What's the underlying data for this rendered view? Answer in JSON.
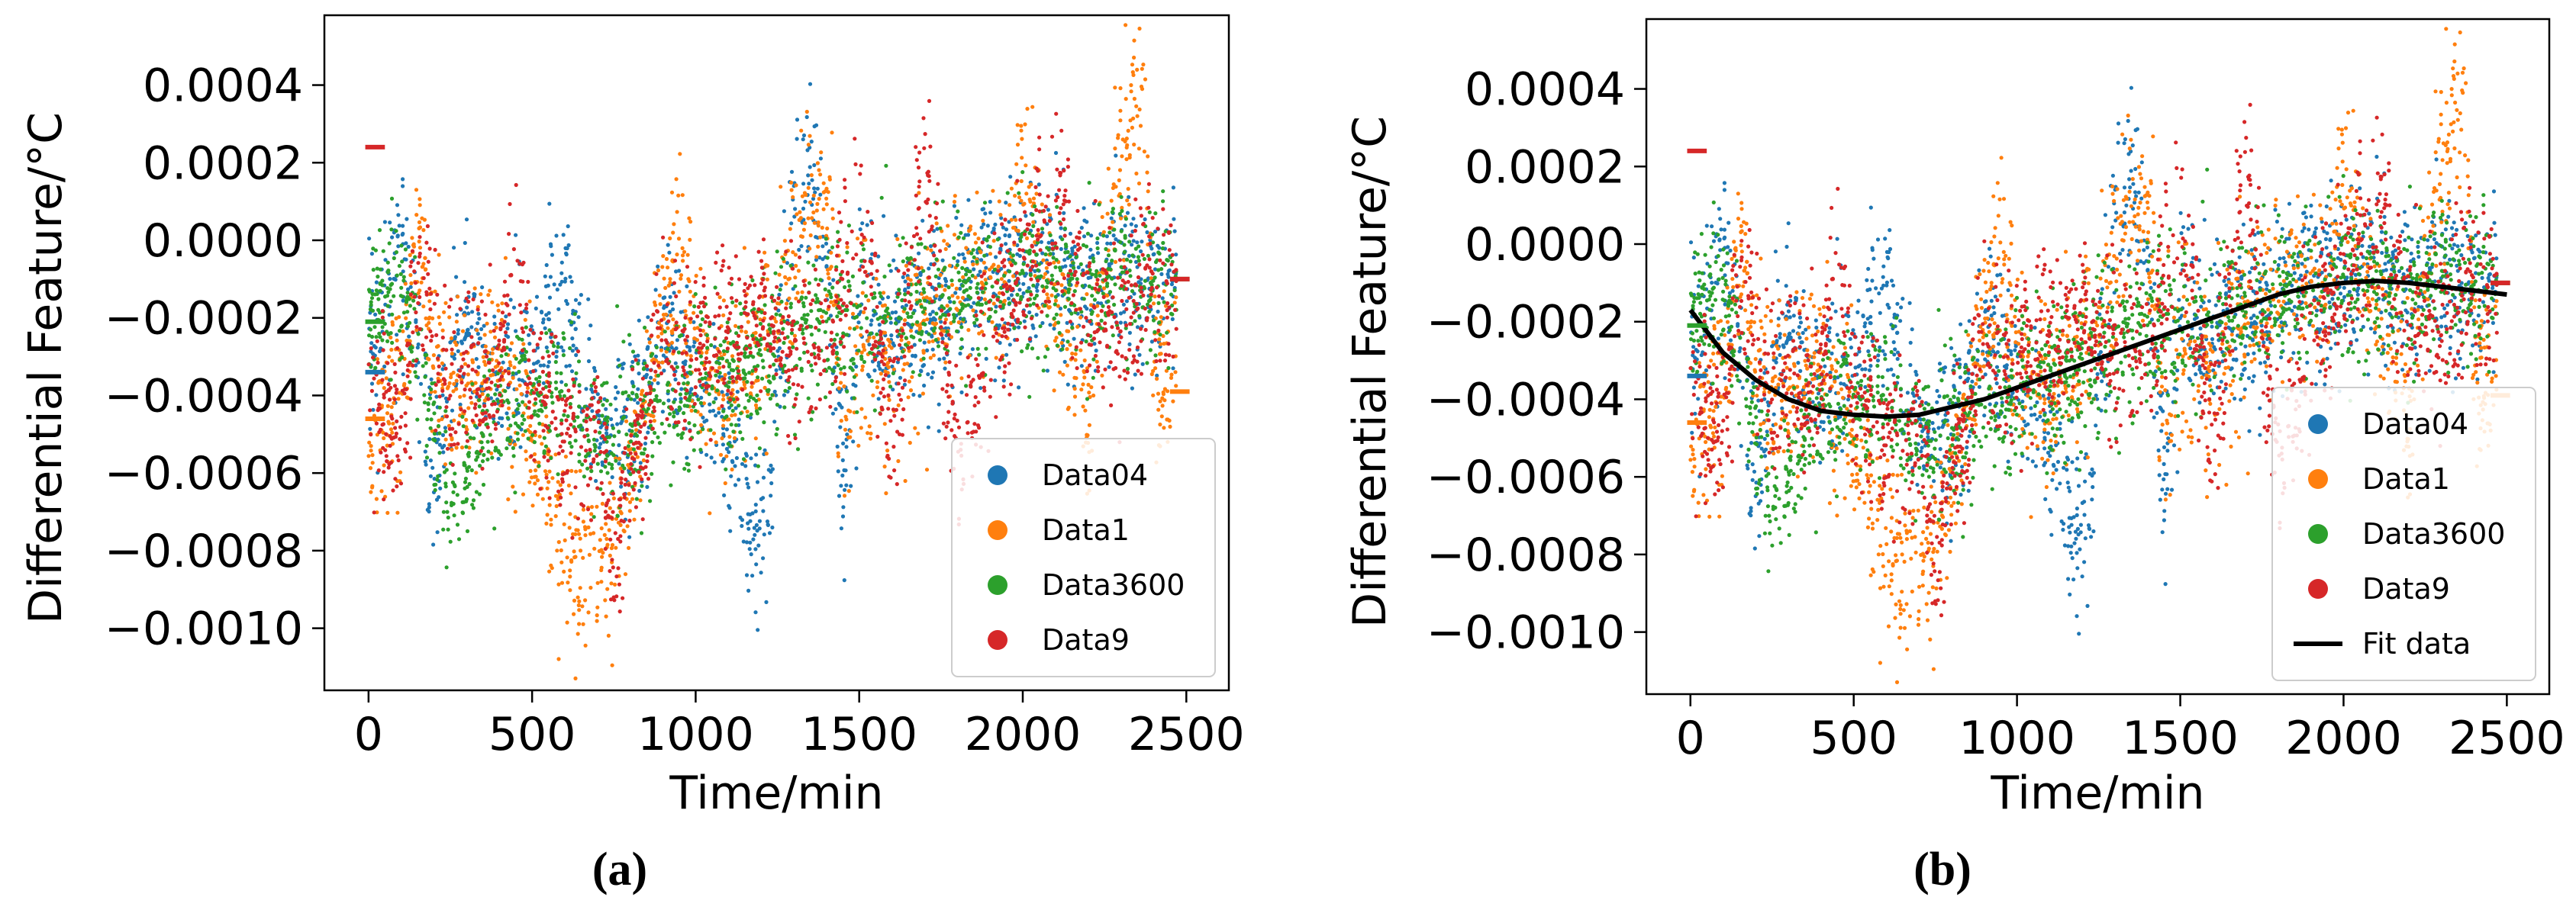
{
  "colors": {
    "Data04": "#1f77b4",
    "Data1": "#ff7f0e",
    "Data3600": "#2ca02c",
    "Data9": "#d62728",
    "fit": "#000000"
  },
  "chart_data": [
    {
      "type": "scatter",
      "panel_label": "(a)",
      "xlabel": "Time/min",
      "ylabel": "Differential Feature/°C",
      "xlim": [
        -135,
        2630
      ],
      "ylim": [
        -0.00116,
        0.00058
      ],
      "xticks": [
        0,
        500,
        1000,
        1500,
        2000,
        2500
      ],
      "xtick_labels": [
        "0",
        "500",
        "1000",
        "1500",
        "2000",
        "2500"
      ],
      "yticks": [
        0.0004,
        0.0002,
        0.0,
        -0.0002,
        -0.0004,
        -0.0006,
        -0.0008,
        -0.001
      ],
      "ytick_labels": [
        "0.0004",
        "0.0002",
        "0.0000",
        "−0.0002",
        "−0.0004",
        "−0.0006",
        "−0.0008",
        "−0.0010"
      ],
      "legend_position": "lower-right",
      "legend": [
        "Data04",
        "Data1",
        "Data3600",
        "Data9"
      ],
      "series": [
        {
          "name": "Data04",
          "start_marker": -0.00034,
          "end_marker": null,
          "trend": [
            [
              0,
              -0.0003
            ],
            [
              100,
              0.0
            ],
            [
              200,
              -0.0006
            ],
            [
              300,
              -0.0002
            ],
            [
              400,
              -0.0004
            ],
            [
              550,
              -0.0002
            ],
            [
              600,
              -0.00015
            ],
            [
              700,
              -0.0005
            ],
            [
              800,
              -0.0005
            ],
            [
              900,
              -0.00025
            ],
            [
              1000,
              -0.0004
            ],
            [
              1100,
              -0.0005
            ],
            [
              1200,
              -0.0008
            ],
            [
              1300,
              5e-05
            ],
            [
              1350,
              0.0002
            ],
            [
              1400,
              -0.0001
            ],
            [
              1450,
              -0.0006
            ],
            [
              1500,
              -0.0002
            ],
            [
              1700,
              -0.0002
            ],
            [
              1900,
              -0.0001
            ],
            [
              2100,
              -8e-05
            ],
            [
              2300,
              -0.0001
            ],
            [
              2450,
              -0.0001
            ]
          ],
          "spread": 0.00011
        },
        {
          "name": "Data1",
          "start_marker": -0.00046,
          "end_marker": -0.00039,
          "trend": [
            [
              0,
              -0.0005
            ],
            [
              100,
              -0.0004
            ],
            [
              150,
              0.0
            ],
            [
              200,
              -0.0003
            ],
            [
              300,
              -0.0004
            ],
            [
              400,
              -0.0003
            ],
            [
              500,
              -0.0005
            ],
            [
              600,
              -0.0008
            ],
            [
              700,
              -0.0009
            ],
            [
              750,
              -0.0008
            ],
            [
              800,
              -0.0006
            ],
            [
              900,
              -0.0002
            ],
            [
              950,
              0.0
            ],
            [
              1000,
              -0.0003
            ],
            [
              1100,
              -0.0004
            ],
            [
              1250,
              -0.0002
            ],
            [
              1300,
              0.0
            ],
            [
              1400,
              0.0001
            ],
            [
              1450,
              -0.0005
            ],
            [
              1500,
              -0.0003
            ],
            [
              1600,
              -0.0003
            ],
            [
              1700,
              -0.0002
            ],
            [
              1800,
              -0.0001
            ],
            [
              1950,
              -0.0001
            ],
            [
              2000,
              0.0002
            ],
            [
              2100,
              -0.0002
            ],
            [
              2200,
              -0.0004
            ],
            [
              2300,
              0.0002
            ],
            [
              2370,
              0.0004
            ],
            [
              2400,
              -0.0003
            ],
            [
              2450,
              -0.0004
            ]
          ],
          "spread": 0.00012
        },
        {
          "name": "Data3600",
          "start_marker": -0.00021,
          "end_marker": -0.0001,
          "trend": [
            [
              0,
              -0.0002
            ],
            [
              100,
              -0.0001
            ],
            [
              200,
              -0.0005
            ],
            [
              250,
              -0.0007
            ],
            [
              300,
              -0.0006
            ],
            [
              400,
              -0.0004
            ],
            [
              600,
              -0.0004
            ],
            [
              700,
              -0.0005
            ],
            [
              800,
              -0.0005
            ],
            [
              1000,
              -0.0004
            ],
            [
              1200,
              -0.0003
            ],
            [
              1500,
              -0.0002
            ],
            [
              1800,
              -0.00015
            ],
            [
              2000,
              -0.0001
            ],
            [
              2200,
              -0.0001
            ],
            [
              2450,
              -0.0001
            ]
          ],
          "spread": 0.0001
        },
        {
          "name": "Data9",
          "start_marker": 0.00024,
          "end_marker": -0.0001,
          "trend": [
            [
              0,
              -0.0004
            ],
            [
              100,
              -0.0005
            ],
            [
              150,
              -0.0001
            ],
            [
              200,
              -0.0002
            ],
            [
              250,
              -0.0004
            ],
            [
              300,
              -0.0003
            ],
            [
              400,
              -0.0004
            ],
            [
              450,
              0.0001
            ],
            [
              500,
              -0.0004
            ],
            [
              600,
              -0.0005
            ],
            [
              700,
              -0.0005
            ],
            [
              750,
              -0.0008
            ],
            [
              800,
              -0.0006
            ],
            [
              900,
              -0.0003
            ],
            [
              1000,
              -0.0003
            ],
            [
              1200,
              -0.0002
            ],
            [
              1400,
              -0.0003
            ],
            [
              1500,
              0.0001
            ],
            [
              1600,
              -0.0005
            ],
            [
              1700,
              0.0002
            ],
            [
              1750,
              -0.0002
            ],
            [
              1800,
              -0.0006
            ],
            [
              1900,
              -0.0002
            ],
            [
              2000,
              -0.0001
            ],
            [
              2100,
              0.0001
            ],
            [
              2200,
              -0.0002
            ],
            [
              2300,
              -0.0002
            ],
            [
              2450,
              -0.0001
            ]
          ],
          "spread": 0.00011
        }
      ]
    },
    {
      "type": "scatter",
      "panel_label": "(b)",
      "xlabel": "Time/min",
      "ylabel": "Differential Feature/°C",
      "xlim": [
        -135,
        2630
      ],
      "ylim": [
        -0.00116,
        0.00058
      ],
      "xticks": [
        0,
        500,
        1000,
        1500,
        2000,
        2500
      ],
      "xtick_labels": [
        "0",
        "500",
        "1000",
        "1500",
        "2000",
        "2500"
      ],
      "yticks": [
        0.0004,
        0.0002,
        0.0,
        -0.0002,
        -0.0004,
        -0.0006,
        -0.0008,
        -0.001
      ],
      "ytick_labels": [
        "0.0004",
        "0.0002",
        "0.0000",
        "−0.0002",
        "−0.0004",
        "−0.0006",
        "−0.0008",
        "−0.0010"
      ],
      "legend_position": "lower-right",
      "legend": [
        "Data04",
        "Data1",
        "Data3600",
        "Data9",
        "Fit data"
      ],
      "series_same_as_panel": "(a)",
      "fit_curve": {
        "name": "Fit data",
        "points": [
          [
            0,
            -0.00017
          ],
          [
            100,
            -0.00028
          ],
          [
            200,
            -0.00035
          ],
          [
            300,
            -0.0004
          ],
          [
            400,
            -0.00043
          ],
          [
            500,
            -0.00044
          ],
          [
            600,
            -0.000445
          ],
          [
            700,
            -0.00044
          ],
          [
            800,
            -0.00042
          ],
          [
            900,
            -0.0004
          ],
          [
            1000,
            -0.00037
          ],
          [
            1100,
            -0.00034
          ],
          [
            1200,
            -0.00031
          ],
          [
            1300,
            -0.00028
          ],
          [
            1400,
            -0.00025
          ],
          [
            1500,
            -0.00022
          ],
          [
            1600,
            -0.00019
          ],
          [
            1700,
            -0.00016
          ],
          [
            1800,
            -0.00013
          ],
          [
            1900,
            -0.00011
          ],
          [
            2000,
            -0.0001
          ],
          [
            2100,
            -9.5e-05
          ],
          [
            2200,
            -0.0001
          ],
          [
            2300,
            -0.00011
          ],
          [
            2400,
            -0.00012
          ],
          [
            2500,
            -0.00013
          ]
        ]
      }
    }
  ]
}
